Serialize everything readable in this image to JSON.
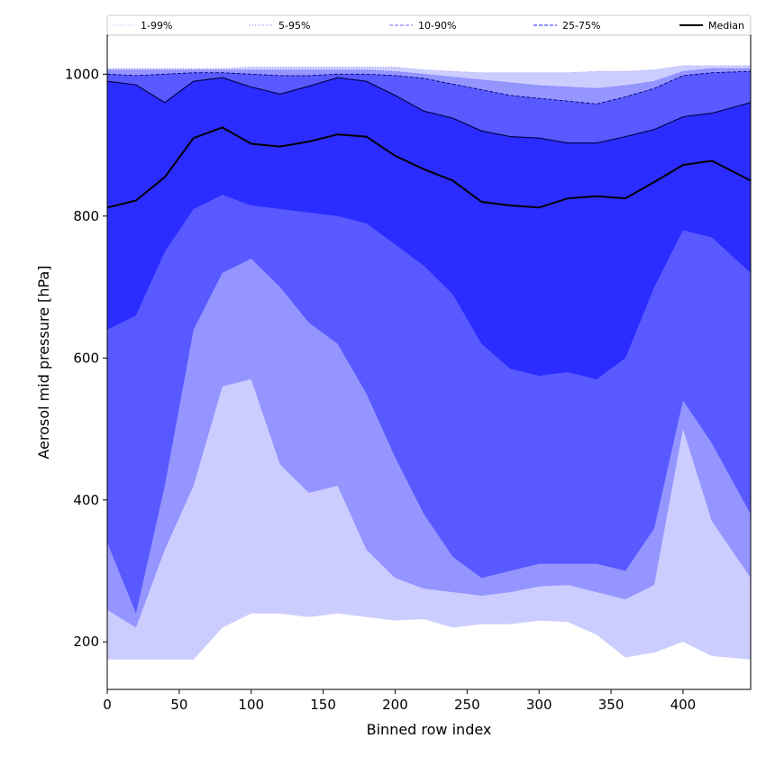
{
  "chart_data": {
    "type": "area",
    "xlabel": "Binned row index",
    "ylabel": "Aerosol mid pressure [hPa]",
    "xlim": [
      0,
      447
    ],
    "ylim": [
      133,
      1055
    ],
    "xticks": [
      0,
      50,
      100,
      150,
      200,
      250,
      300,
      350,
      400
    ],
    "yticks": [
      200,
      400,
      600,
      800,
      1000
    ],
    "legend_position": "top",
    "colors": {
      "band_1_99": "#cccdff",
      "band_5_95": "#9495ff",
      "band_10_90": "#5859ff",
      "band_25_75": "#2b2cff",
      "median": "#000000"
    },
    "x": [
      0,
      20,
      40,
      60,
      80,
      100,
      120,
      140,
      160,
      180,
      200,
      220,
      240,
      260,
      280,
      300,
      320,
      340,
      360,
      380,
      400,
      420,
      447
    ],
    "series": [
      {
        "name": "1-99%",
        "lower": [
          175,
          175,
          175,
          175,
          220,
          240,
          240,
          235,
          240,
          235,
          230,
          232,
          220,
          225,
          225,
          230,
          228,
          210,
          178,
          185,
          200,
          180,
          175
        ],
        "upper": [
          1008,
          1008,
          1008,
          1008,
          1008,
          1010,
          1010,
          1010,
          1010,
          1010,
          1010,
          1006,
          1004,
          1002,
          1002,
          1002,
          1002,
          1004,
          1004,
          1006,
          1012,
          1012,
          1012
        ]
      },
      {
        "name": "5-95%",
        "lower": [
          245,
          220,
          330,
          420,
          560,
          570,
          450,
          410,
          420,
          330,
          290,
          275,
          270,
          265,
          270,
          278,
          280,
          270,
          260,
          280,
          500,
          370,
          290
        ],
        "upper": [
          1006,
          1006,
          1006,
          1006,
          1006,
          1006,
          1006,
          1006,
          1006,
          1006,
          1004,
          1000,
          996,
          992,
          988,
          984,
          982,
          980,
          984,
          990,
          1004,
          1008,
          1008
        ]
      },
      {
        "name": "10-90%",
        "lower": [
          340,
          240,
          420,
          640,
          720,
          740,
          700,
          650,
          620,
          550,
          460,
          380,
          320,
          290,
          300,
          310,
          310,
          310,
          300,
          360,
          540,
          480,
          380
        ],
        "upper": [
          1000,
          998,
          1000,
          1002,
          1002,
          1000,
          998,
          998,
          1000,
          1000,
          998,
          994,
          986,
          978,
          970,
          966,
          962,
          958,
          968,
          980,
          998,
          1002,
          1004
        ]
      },
      {
        "name": "25-75%",
        "lower": [
          640,
          660,
          750,
          810,
          830,
          815,
          810,
          805,
          800,
          790,
          760,
          730,
          690,
          620,
          585,
          575,
          580,
          570,
          600,
          700,
          780,
          770,
          720
        ],
        "upper": [
          990,
          985,
          960,
          990,
          995,
          982,
          972,
          983,
          995,
          990,
          970,
          948,
          938,
          920,
          912,
          910,
          903,
          903,
          912,
          922,
          940,
          945,
          960
        ]
      },
      {
        "name": "Median",
        "values": [
          812,
          822,
          855,
          910,
          925,
          902,
          898,
          905,
          915,
          912,
          885,
          866,
          850,
          820,
          815,
          812,
          825,
          828,
          825,
          848,
          872,
          878,
          850
        ]
      }
    ],
    "legend": [
      {
        "label": "1-99%",
        "style": "dotted",
        "color": "#cccdff"
      },
      {
        "label": "5-95%",
        "style": "dotted",
        "color": "#9495ff"
      },
      {
        "label": "10-90%",
        "style": "dashed",
        "color": "#8a8bff"
      },
      {
        "label": "25-75%",
        "style": "dashed",
        "color": "#4b4cff"
      },
      {
        "label": "Median",
        "style": "solid",
        "color": "#000000"
      }
    ]
  }
}
